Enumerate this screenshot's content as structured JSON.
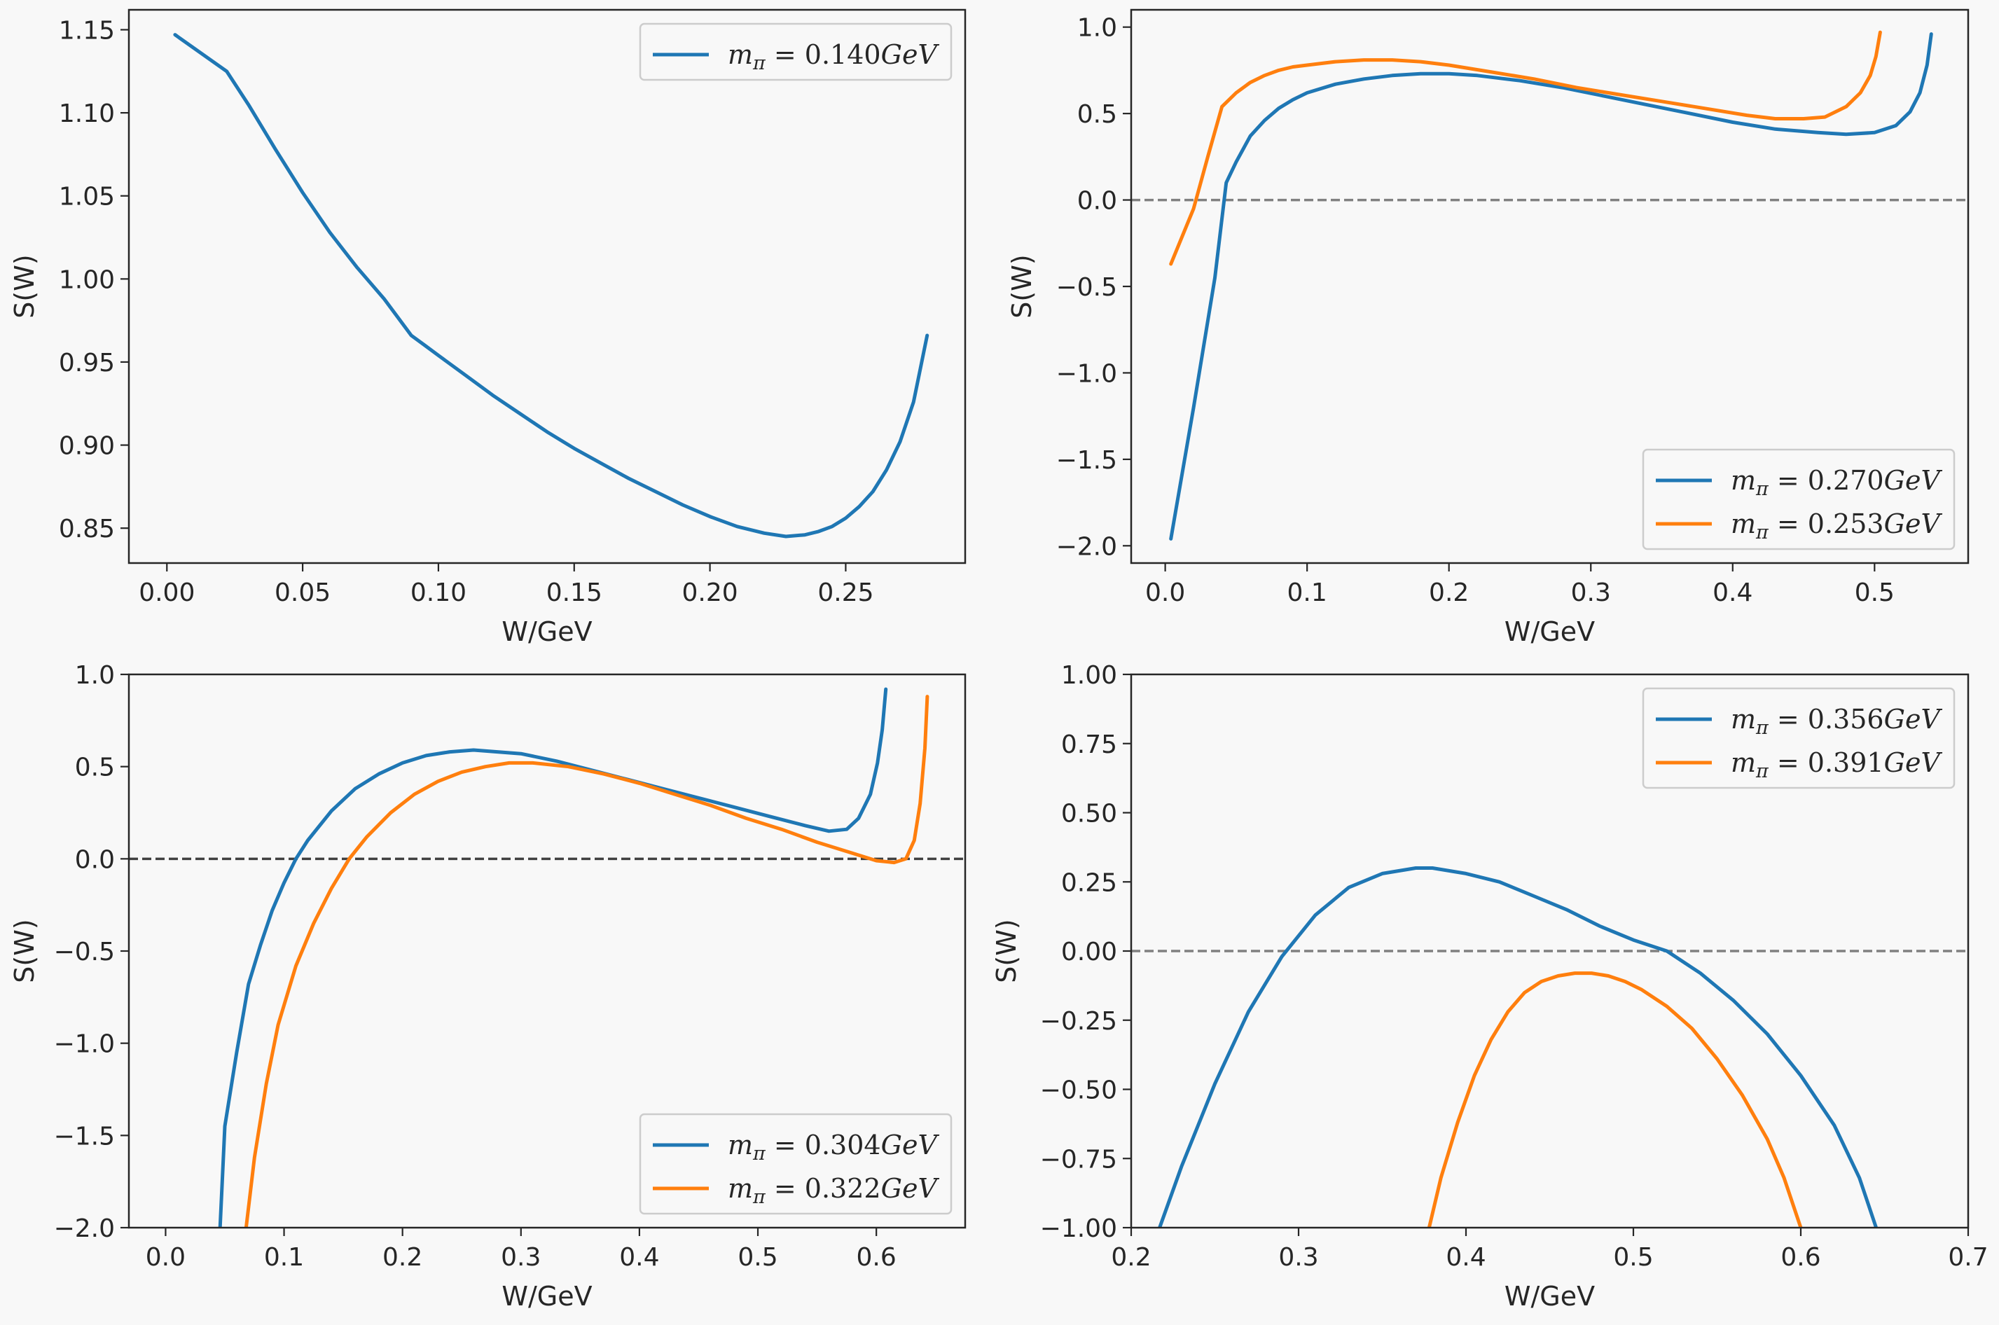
{
  "colors": {
    "blue": "#1f77b4",
    "orange": "#ff7f0e",
    "zero_line": "#808080",
    "background": "#f8f8f8",
    "axes_edge": "#262626"
  },
  "chart_data": [
    {
      "type": "line",
      "title": "",
      "xlabel": "W/GeV",
      "ylabel": "S(W)",
      "xlim": [
        -0.014,
        0.294
      ],
      "ylim": [
        0.829,
        1.162
      ],
      "xticks": [
        0.0,
        0.05,
        0.1,
        0.15,
        0.2,
        0.25
      ],
      "xtick_labels": [
        "0.00",
        "0.05",
        "0.10",
        "0.15",
        "0.20",
        "0.25"
      ],
      "yticks": [
        0.85,
        0.9,
        0.95,
        1.0,
        1.05,
        1.1,
        1.15
      ],
      "ytick_labels": [
        "0.85",
        "0.90",
        "0.95",
        "1.00",
        "1.05",
        "1.10",
        "1.15"
      ],
      "zero_line": null,
      "legend_loc": "upper right",
      "series": [
        {
          "name": "m_π = 0.140GeV",
          "legend": {
            "sym": "m",
            "sub": "π",
            "val": "0.140",
            "unit": "GeV"
          },
          "color": "blue",
          "x": [
            0.003,
            0.022,
            0.03,
            0.04,
            0.05,
            0.06,
            0.07,
            0.08,
            0.085,
            0.09,
            0.095,
            0.1,
            0.11,
            0.12,
            0.13,
            0.14,
            0.15,
            0.16,
            0.17,
            0.18,
            0.19,
            0.2,
            0.21,
            0.22,
            0.228,
            0.235,
            0.24,
            0.245,
            0.25,
            0.255,
            0.26,
            0.265,
            0.27,
            0.275,
            0.28
          ],
          "y": [
            1.147,
            1.125,
            1.105,
            1.078,
            1.052,
            1.028,
            1.007,
            0.988,
            0.977,
            0.966,
            0.96,
            0.954,
            0.942,
            0.93,
            0.919,
            0.908,
            0.898,
            0.889,
            0.88,
            0.872,
            0.864,
            0.857,
            0.851,
            0.847,
            0.845,
            0.846,
            0.848,
            0.851,
            0.856,
            0.863,
            0.872,
            0.885,
            0.902,
            0.926,
            0.966
          ]
        }
      ]
    },
    {
      "type": "line",
      "title": "",
      "xlabel": "W/GeV",
      "ylabel": "S(W)",
      "xlim": [
        -0.024,
        0.566
      ],
      "ylim": [
        -2.1,
        1.1
      ],
      "xticks": [
        0.0,
        0.1,
        0.2,
        0.3,
        0.4,
        0.5
      ],
      "xtick_labels": [
        "0.0",
        "0.1",
        "0.2",
        "0.3",
        "0.4",
        "0.5"
      ],
      "yticks": [
        -2.0,
        -1.5,
        -1.0,
        -0.5,
        0.0,
        0.5,
        1.0
      ],
      "ytick_labels": [
        "−2.0",
        "−1.5",
        "−1.0",
        "−0.5",
        "0.0",
        "0.5",
        "1.0"
      ],
      "zero_line": 0,
      "legend_loc": "lower right",
      "series": [
        {
          "name": "m_π = 0.270GeV",
          "legend": {
            "sym": "m",
            "sub": "π",
            "val": "0.270",
            "unit": "GeV"
          },
          "color": "blue",
          "x": [
            0.004,
            0.02,
            0.035,
            0.043,
            0.05,
            0.06,
            0.07,
            0.08,
            0.09,
            0.1,
            0.12,
            0.14,
            0.16,
            0.18,
            0.2,
            0.22,
            0.25,
            0.28,
            0.31,
            0.34,
            0.37,
            0.4,
            0.43,
            0.46,
            0.48,
            0.5,
            0.515,
            0.525,
            0.532,
            0.537,
            0.54
          ],
          "y": [
            -1.96,
            -1.2,
            -0.45,
            0.1,
            0.22,
            0.37,
            0.46,
            0.53,
            0.58,
            0.62,
            0.67,
            0.7,
            0.72,
            0.73,
            0.73,
            0.72,
            0.69,
            0.65,
            0.6,
            0.55,
            0.5,
            0.45,
            0.41,
            0.39,
            0.38,
            0.39,
            0.43,
            0.51,
            0.62,
            0.78,
            0.96
          ]
        },
        {
          "name": "m_π = 0.253GeV",
          "legend": {
            "sym": "m",
            "sub": "π",
            "val": "0.253",
            "unit": "GeV"
          },
          "color": "orange",
          "x": [
            0.004,
            0.02,
            0.03,
            0.04,
            0.05,
            0.06,
            0.07,
            0.08,
            0.09,
            0.1,
            0.12,
            0.14,
            0.16,
            0.18,
            0.2,
            0.23,
            0.26,
            0.29,
            0.32,
            0.35,
            0.38,
            0.41,
            0.43,
            0.45,
            0.465,
            0.48,
            0.49,
            0.497,
            0.501,
            0.504
          ],
          "y": [
            -0.37,
            -0.05,
            0.25,
            0.54,
            0.62,
            0.68,
            0.72,
            0.75,
            0.77,
            0.78,
            0.8,
            0.81,
            0.81,
            0.8,
            0.78,
            0.74,
            0.7,
            0.65,
            0.61,
            0.57,
            0.53,
            0.49,
            0.47,
            0.47,
            0.48,
            0.54,
            0.62,
            0.72,
            0.83,
            0.97
          ]
        }
      ]
    },
    {
      "type": "line",
      "title": "",
      "xlabel": "W/GeV",
      "ylabel": "S(W)",
      "xlim": [
        -0.031,
        0.675
      ],
      "ylim": [
        -2.0,
        1.0
      ],
      "xticks": [
        0.0,
        0.1,
        0.2,
        0.3,
        0.4,
        0.5,
        0.6
      ],
      "xtick_labels": [
        "0.0",
        "0.1",
        "0.2",
        "0.3",
        "0.4",
        "0.5",
        "0.6"
      ],
      "yticks": [
        -2.0,
        -1.5,
        -1.0,
        -0.5,
        0.0,
        0.5,
        1.0
      ],
      "ytick_labels": [
        "−2.0",
        "−1.5",
        "−1.0",
        "−0.5",
        "0.0",
        "0.5",
        "1.0"
      ],
      "zero_line": 0,
      "legend_loc": "lower right",
      "series": [
        {
          "name": "m_π = 0.304GeV",
          "legend": {
            "sym": "m",
            "sub": "π",
            "val": "0.304",
            "unit": "GeV"
          },
          "color": "blue",
          "x": [
            0.046,
            0.05,
            0.06,
            0.07,
            0.08,
            0.09,
            0.1,
            0.11,
            0.12,
            0.14,
            0.16,
            0.18,
            0.2,
            0.22,
            0.24,
            0.26,
            0.28,
            0.3,
            0.33,
            0.36,
            0.39,
            0.42,
            0.45,
            0.48,
            0.51,
            0.54,
            0.56,
            0.575,
            0.585,
            0.595,
            0.601,
            0.605,
            0.608
          ],
          "y": [
            -2.0,
            -1.45,
            -1.05,
            -0.68,
            -0.47,
            -0.28,
            -0.13,
            0.0,
            0.1,
            0.26,
            0.38,
            0.46,
            0.52,
            0.56,
            0.58,
            0.59,
            0.58,
            0.57,
            0.53,
            0.48,
            0.43,
            0.38,
            0.33,
            0.28,
            0.23,
            0.18,
            0.15,
            0.16,
            0.22,
            0.35,
            0.52,
            0.7,
            0.92
          ]
        },
        {
          "name": "m_π = 0.322GeV",
          "legend": {
            "sym": "m",
            "sub": "π",
            "val": "0.322",
            "unit": "GeV"
          },
          "color": "orange",
          "x": [
            0.068,
            0.075,
            0.085,
            0.095,
            0.11,
            0.125,
            0.14,
            0.155,
            0.17,
            0.19,
            0.21,
            0.23,
            0.25,
            0.27,
            0.29,
            0.31,
            0.34,
            0.37,
            0.4,
            0.43,
            0.46,
            0.49,
            0.52,
            0.55,
            0.58,
            0.6,
            0.615,
            0.625,
            0.632,
            0.637,
            0.641,
            0.643
          ],
          "y": [
            -2.0,
            -1.62,
            -1.22,
            -0.9,
            -0.58,
            -0.35,
            -0.16,
            0.0,
            0.12,
            0.25,
            0.35,
            0.42,
            0.47,
            0.5,
            0.52,
            0.52,
            0.5,
            0.46,
            0.41,
            0.35,
            0.29,
            0.22,
            0.16,
            0.09,
            0.03,
            -0.01,
            -0.02,
            0.0,
            0.1,
            0.3,
            0.6,
            0.88
          ]
        }
      ]
    },
    {
      "type": "line",
      "title": "",
      "xlabel": "W/GeV",
      "ylabel": "S(W)",
      "xlim": [
        0.2,
        0.7
      ],
      "ylim": [
        -1.0,
        1.0
      ],
      "xticks": [
        0.2,
        0.3,
        0.4,
        0.5,
        0.6,
        0.7
      ],
      "xtick_labels": [
        "0.2",
        "0.3",
        "0.4",
        "0.5",
        "0.6",
        "0.7"
      ],
      "yticks": [
        -1.0,
        -0.75,
        -0.5,
        -0.25,
        0.0,
        0.25,
        0.5,
        0.75,
        1.0
      ],
      "ytick_labels": [
        "−1.00",
        "−0.75",
        "−0.50",
        "−0.25",
        "0.00",
        "0.25",
        "0.50",
        "0.75",
        "1.00"
      ],
      "zero_line": 0,
      "legend_loc": "upper right",
      "series": [
        {
          "name": "m_π = 0.356GeV",
          "legend": {
            "sym": "m",
            "sub": "π",
            "val": "0.356",
            "unit": "GeV"
          },
          "color": "blue",
          "x": [
            0.217,
            0.23,
            0.25,
            0.27,
            0.29,
            0.31,
            0.33,
            0.35,
            0.37,
            0.38,
            0.4,
            0.42,
            0.44,
            0.46,
            0.48,
            0.5,
            0.52,
            0.54,
            0.56,
            0.58,
            0.6,
            0.62,
            0.635,
            0.645
          ],
          "y": [
            -1.0,
            -0.78,
            -0.48,
            -0.22,
            -0.02,
            0.13,
            0.23,
            0.28,
            0.3,
            0.3,
            0.28,
            0.25,
            0.2,
            0.15,
            0.09,
            0.04,
            0.0,
            -0.08,
            -0.18,
            -0.3,
            -0.45,
            -0.63,
            -0.82,
            -1.0
          ]
        },
        {
          "name": "m_π = 0.391GeV",
          "legend": {
            "sym": "m",
            "sub": "π",
            "val": "0.391",
            "unit": "GeV"
          },
          "color": "orange",
          "x": [
            0.378,
            0.385,
            0.395,
            0.405,
            0.415,
            0.425,
            0.435,
            0.445,
            0.455,
            0.465,
            0.475,
            0.485,
            0.495,
            0.505,
            0.52,
            0.535,
            0.55,
            0.565,
            0.58,
            0.59,
            0.6
          ],
          "y": [
            -1.0,
            -0.82,
            -0.62,
            -0.45,
            -0.32,
            -0.22,
            -0.15,
            -0.11,
            -0.09,
            -0.08,
            -0.08,
            -0.09,
            -0.11,
            -0.14,
            -0.2,
            -0.28,
            -0.39,
            -0.52,
            -0.68,
            -0.82,
            -1.0
          ]
        }
      ]
    }
  ]
}
